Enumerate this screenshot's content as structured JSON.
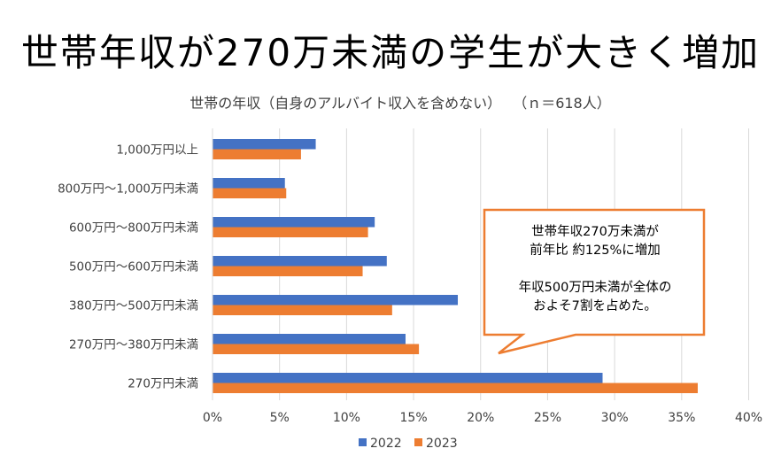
{
  "title": "世帯年収が270万未満の学生が大きく増加",
  "subtitle": "世帯の年収（自身のアルバイト収入を含めない）　 （ｎ＝618人）",
  "callout": {
    "lines": [
      "世帯年収270万未満が",
      "前年比 約125%に増加",
      "",
      "年収500万円未満が全体の",
      "およそ7割を占めた。"
    ],
    "border_color": "#ED7D31"
  },
  "chart_data": {
    "type": "bar",
    "orientation": "horizontal",
    "title": "世帯の年収（自身のアルバイト収入を含めない）　 （ｎ＝618人）",
    "xlabel": "",
    "ylabel": "",
    "categories": [
      "1,000万円以上",
      "800万円～1,000万円未満",
      "600万円～800万円未満",
      "500万円～600万円未満",
      "380万円～500万円未満",
      "270万円～380万円未満",
      "270万円未満"
    ],
    "series": [
      {
        "name": "2022",
        "color": "#4472C4",
        "values": [
          7.7,
          5.4,
          12.1,
          13.0,
          18.3,
          14.4,
          29.1
        ]
      },
      {
        "name": "2023",
        "color": "#ED7D31",
        "values": [
          6.6,
          5.5,
          11.6,
          11.2,
          13.4,
          15.4,
          36.2
        ]
      }
    ],
    "xlim": [
      0,
      40
    ],
    "x_ticks": [
      0,
      5,
      10,
      15,
      20,
      25,
      30,
      35,
      40
    ],
    "x_tick_labels": [
      "0%",
      "5%",
      "10%",
      "15%",
      "20%",
      "25%",
      "30%",
      "35%",
      "40%"
    ],
    "value_unit": "%",
    "grid": true,
    "legend_position": "bottom",
    "legend": [
      "2022",
      "2023"
    ],
    "gridline_color": "#D9D9D9"
  }
}
